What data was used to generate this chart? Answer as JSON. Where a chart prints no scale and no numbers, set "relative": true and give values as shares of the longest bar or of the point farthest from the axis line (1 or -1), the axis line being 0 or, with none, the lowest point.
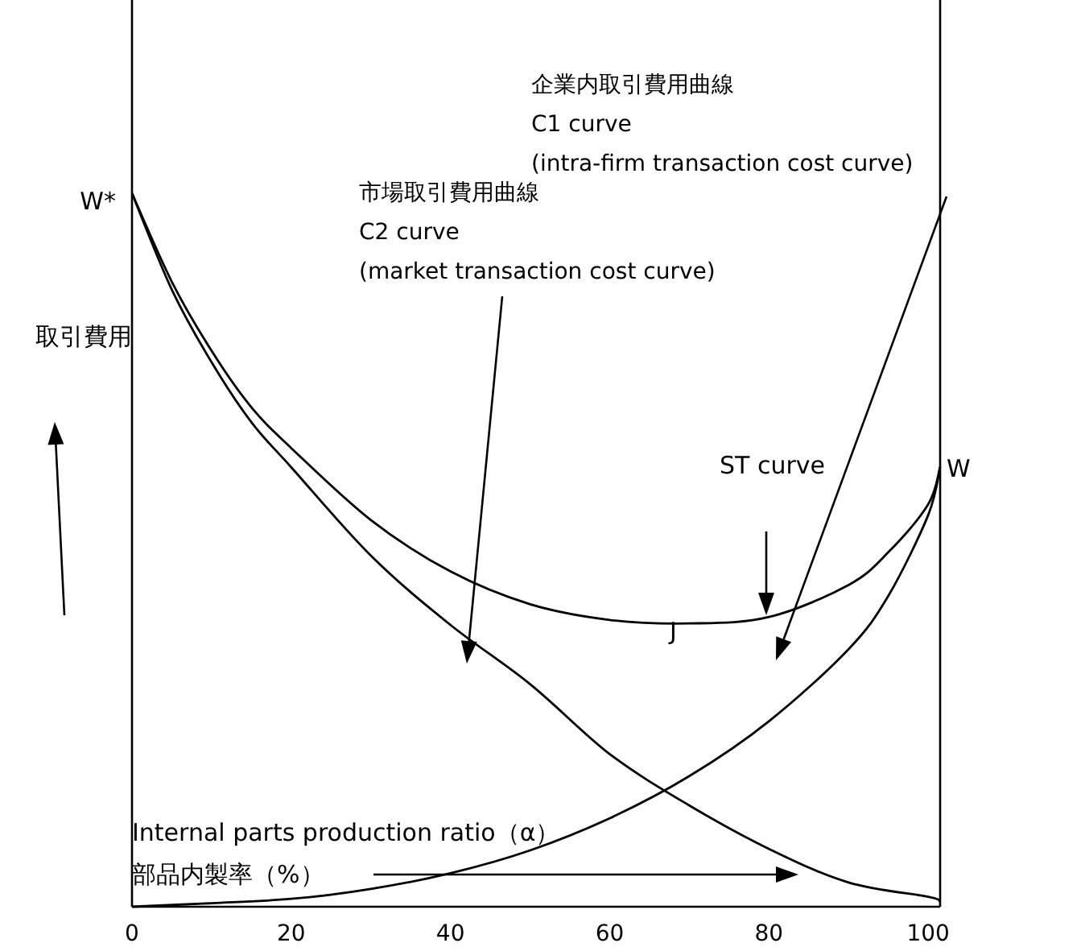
{
  "chart_data": {
    "type": "line",
    "relative": true,
    "line_style": "solid",
    "xlim": [
      0,
      101.5
    ],
    "xticks": [
      0,
      20,
      40,
      60,
      80,
      100
    ],
    "xlabel": "Internal parts production ratio（α）",
    "ylabel": "取引費用",
    "annotations": [
      "W*",
      "W",
      "J",
      "ST curve",
      "市場取引費用曲線\nC2 curve\n(market transaction cost curve)",
      "企業内取引費用曲線\nC1 curve\n(intra-firm transaction cost curve)",
      "部品内製率（%）"
    ],
    "series": [
      {
        "color": "#000000",
        "x": [
          0,
          5,
          10,
          15,
          20,
          30,
          40,
          50,
          60,
          70,
          80,
          90,
          100,
          101.5
        ],
        "values": [
          1,
          0.865,
          0.763,
          0.679,
          0.616,
          0.492,
          0.395,
          0.312,
          0.214,
          0.142,
          0.081,
          0.034,
          0.014,
          0.007
        ]
      },
      {
        "color": "#000000",
        "x": [
          0,
          10,
          20,
          30,
          40,
          50,
          60,
          70,
          80,
          90,
          95,
          100,
          101.5
        ],
        "values": [
          0,
          0.005,
          0.011,
          0.025,
          0.047,
          0.079,
          0.124,
          0.183,
          0.26,
          0.361,
          0.436,
          0.549,
          0.616
        ]
      },
      {
        "color": "#000000",
        "x": [
          0,
          5,
          10,
          15,
          20,
          30,
          40,
          50,
          60,
          70,
          80,
          90,
          95,
          100,
          101.5
        ],
        "values": [
          1,
          0.876,
          0.779,
          0.7,
          0.643,
          0.542,
          0.47,
          0.424,
          0.402,
          0.397,
          0.406,
          0.451,
          0.497,
          0.564,
          0.616
        ]
      }
    ]
  }
}
